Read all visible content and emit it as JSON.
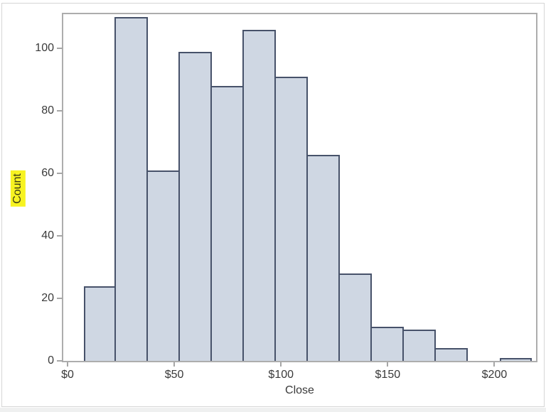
{
  "window": {
    "background": "#ffffff",
    "frame_border_color": "#d6d6d6",
    "bottom_strip_color": "#eff0f0"
  },
  "chart_data": {
    "type": "bar",
    "subtype": "histogram",
    "title": "",
    "xlabel": "Close",
    "ylabel": "Count",
    "grid": false,
    "legend": null,
    "bins": {
      "start": 7.5,
      "width": 15
    },
    "bin_midpoints": [
      15,
      30,
      45,
      60,
      75,
      90,
      105,
      120,
      135,
      150,
      165,
      180,
      195,
      210
    ],
    "counts": [
      24,
      110,
      61,
      99,
      88,
      106,
      91,
      66,
      28,
      11,
      10,
      4,
      0,
      1
    ],
    "x_ticks": [
      {
        "value": 0,
        "label": "$0"
      },
      {
        "value": 50,
        "label": "$50"
      },
      {
        "value": 100,
        "label": "$100"
      },
      {
        "value": 150,
        "label": "$150"
      },
      {
        "value": 200,
        "label": "$200"
      }
    ],
    "y_ticks": [
      {
        "value": 0,
        "label": "0"
      },
      {
        "value": 20,
        "label": "20"
      },
      {
        "value": 40,
        "label": "40"
      },
      {
        "value": 60,
        "label": "60"
      },
      {
        "value": 80,
        "label": "80"
      },
      {
        "value": 100,
        "label": "100"
      }
    ],
    "xlim": [
      -2,
      219.5
    ],
    "ylim": [
      0,
      111
    ],
    "colors": {
      "bar_fill": "#cfd7e3",
      "bar_border": "#47526a",
      "plot_border": "#adadad",
      "tick": "#a6a6a6",
      "text": "#3a3a3a",
      "ylabel_highlight": "#f7f321"
    }
  }
}
